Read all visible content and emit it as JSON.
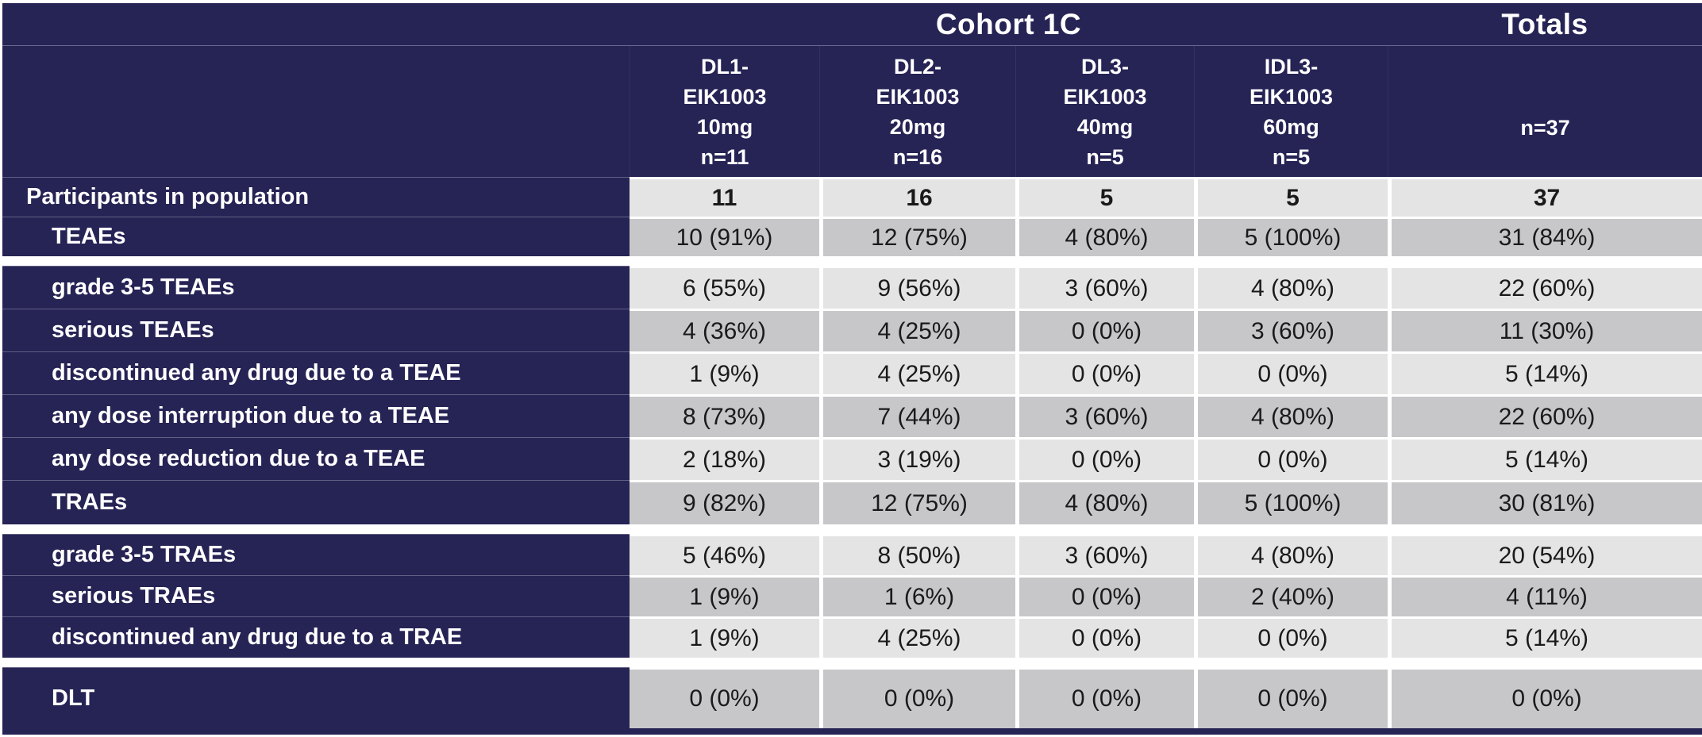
{
  "colors": {
    "header_navy": "#262355",
    "row_light_gray": "#e4e4e4",
    "row_dark_gray": "#c7c7ca",
    "value_text": "#1a1a1a",
    "header_text": "#ffffff"
  },
  "chart_data": {
    "type": "table",
    "title": "Cohort 1C",
    "totals_title": "Totals",
    "column_headers": [
      "DL1-\nEIK1003\n10mg\nn=11",
      "DL2-\nEIK1003\n20mg\nn=16",
      "DL3-\nEIK1003\n40mg\nn=5",
      "IDL3-\nEIK1003\n60mg\nn=5",
      "n=37"
    ],
    "rows": [
      {
        "label": "Participants in population",
        "values": [
          "11",
          "16",
          "5",
          "5",
          "37"
        ]
      },
      {
        "label": "TEAEs",
        "values": [
          "10 (91%)",
          "12 (75%)",
          "4 (80%)",
          "5 (100%)",
          "31 (84%)"
        ]
      },
      {
        "label": "grade 3-5 TEAEs",
        "values": [
          "6 (55%)",
          "9 (56%)",
          "3 (60%)",
          "4 (80%)",
          "22 (60%)"
        ]
      },
      {
        "label": "serious TEAEs",
        "values": [
          "4 (36%)",
          "4 (25%)",
          "0 (0%)",
          "3 (60%)",
          "11 (30%)"
        ]
      },
      {
        "label": "discontinued any drug due to a TEAE",
        "values": [
          "1 (9%)",
          "4 (25%)",
          "0 (0%)",
          "0 (0%)",
          "5 (14%)"
        ]
      },
      {
        "label": "any dose interruption due to a TEAE",
        "values": [
          "8 (73%)",
          "7 (44%)",
          "3 (60%)",
          "4 (80%)",
          "22 (60%)"
        ]
      },
      {
        "label": "any dose reduction due to a TEAE",
        "values": [
          "2 (18%)",
          "3 (19%)",
          "0 (0%)",
          "0 (0%)",
          "5 (14%)"
        ]
      },
      {
        "label": "TRAEs",
        "values": [
          "9 (82%)",
          "12 (75%)",
          "4 (80%)",
          "5 (100%)",
          "30 (81%)"
        ]
      },
      {
        "label": "grade 3-5 TRAEs",
        "values": [
          "5 (46%)",
          "8 (50%)",
          "3 (60%)",
          "4 (80%)",
          "20 (54%)"
        ]
      },
      {
        "label": "serious TRAEs",
        "values": [
          "1 (9%)",
          "1 (6%)",
          "0 (0%)",
          "2 (40%)",
          "4 (11%)"
        ]
      },
      {
        "label": "discontinued any drug due to a TRAE",
        "values": [
          "1 (9%)",
          "4 (25%)",
          "0 (0%)",
          "0 (0%)",
          "5 (14%)"
        ]
      },
      {
        "label": "DLT",
        "values": [
          "0 (0%)",
          "0 (0%)",
          "0 (0%)",
          "0 (0%)",
          "0 (0%)"
        ]
      }
    ]
  }
}
